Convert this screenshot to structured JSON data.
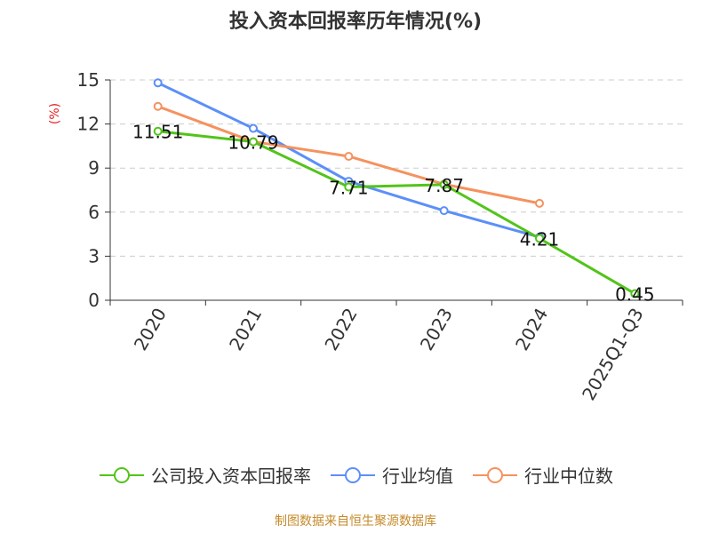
{
  "chart_data": {
    "type": "line",
    "title": "投入资本回报率历年情况(%)",
    "ylabel": "(%)",
    "xlabel": "",
    "categories": [
      "2020",
      "2021",
      "2022",
      "2023",
      "2024",
      "2025Q1-Q3"
    ],
    "ylim": [
      0,
      15
    ],
    "yticks": [
      0,
      3,
      6,
      9,
      12,
      15
    ],
    "grid": true,
    "legend_position": "bottom",
    "series": [
      {
        "name": "公司投入资本回报率",
        "color": "#52c41a",
        "values": [
          11.51,
          10.79,
          7.71,
          7.87,
          4.21,
          0.45
        ],
        "labels": [
          "11.51",
          "10.79",
          "7.71",
          "7.87",
          "4.21",
          "0.45"
        ]
      },
      {
        "name": "行业均值",
        "color": "#5b8ff9",
        "values": [
          14.8,
          11.7,
          8.1,
          6.1,
          4.3,
          null
        ]
      },
      {
        "name": "行业中位数",
        "color": "#f5925e",
        "values": [
          13.2,
          10.8,
          9.8,
          7.9,
          6.6,
          null
        ]
      }
    ]
  },
  "footer": {
    "source": "制图数据来自恒生聚源数据库"
  }
}
